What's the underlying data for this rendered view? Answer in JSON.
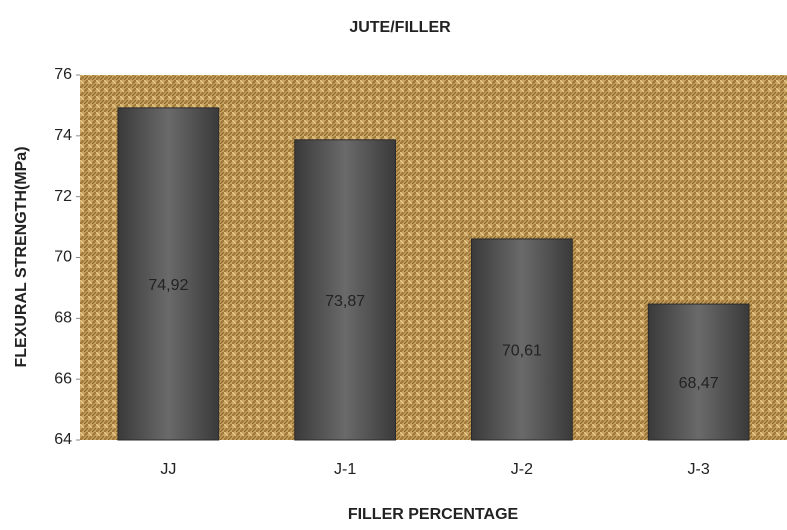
{
  "chart_data": {
    "type": "bar",
    "title": "JUTE/FILLER",
    "x_label": "FILLER  PERCENTAGE",
    "y_label": "FLEXURAL STRENGTH(MPa)",
    "categories": [
      "JJ",
      "J-1",
      "J-2",
      "J-3"
    ],
    "values": [
      74.92,
      73.87,
      70.61,
      68.47
    ],
    "value_labels": [
      "74,92",
      "73,87",
      "70,61",
      "68,47"
    ],
    "color": "#555555",
    "ylim": [
      64,
      76
    ],
    "yticks": [
      64,
      66,
      68,
      70,
      72,
      74,
      76
    ],
    "grid": false
  }
}
